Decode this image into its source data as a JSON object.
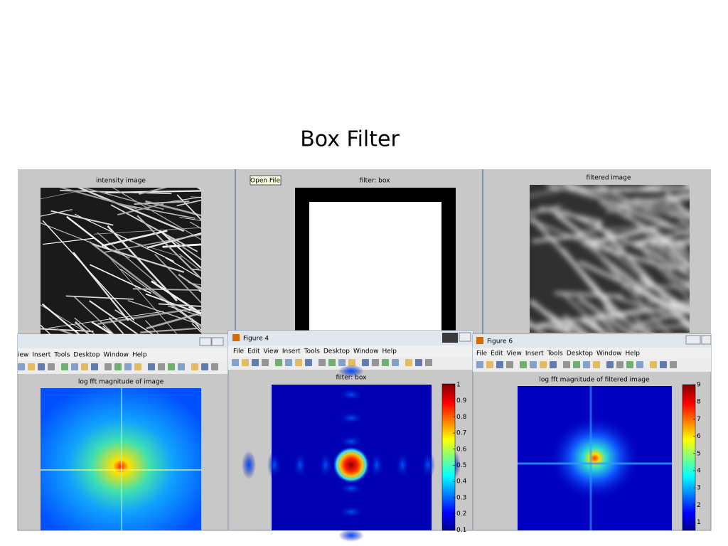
{
  "title": "Box Filter",
  "panels": [
    {
      "title": "intensity image"
    },
    {
      "tooltip": "Open File",
      "title": "filter: box"
    },
    {
      "title": "filtered image"
    }
  ],
  "windows": [
    {
      "menu": [
        "iew",
        "Insert",
        "Tools",
        "Desktop",
        "Window",
        "Help"
      ],
      "plot_title": "log fft magnitude of image"
    },
    {
      "window_title": "Figure 4",
      "menu": [
        "File",
        "Edit",
        "View",
        "Insert",
        "Tools",
        "Desktop",
        "Window",
        "Help"
      ],
      "plot_title": "filter: box",
      "colorbar_ticks": [
        1,
        0.9,
        0.8,
        0.7,
        0.6,
        0.5,
        0.4,
        0.3,
        0.2,
        0.1
      ]
    },
    {
      "window_title": "Figure 6",
      "menu": [
        "File",
        "Edit",
        "View",
        "Insert",
        "Tools",
        "Desktop",
        "Window",
        "Help"
      ],
      "plot_title": "log fft magnitude of filtered image",
      "colorbar_ticks": [
        9,
        8,
        7,
        6,
        5,
        4,
        3,
        2,
        1
      ]
    }
  ]
}
